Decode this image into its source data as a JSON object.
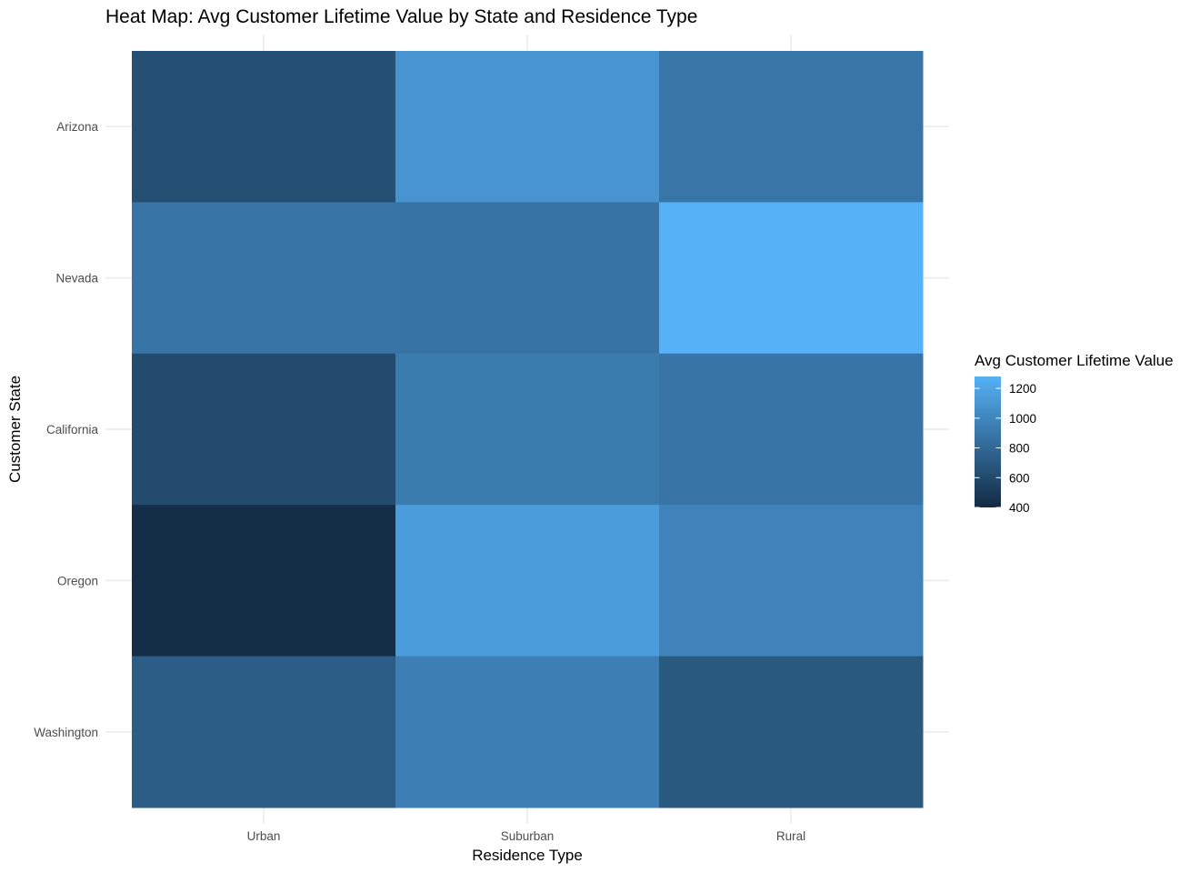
{
  "chart_data": {
    "type": "heatmap",
    "title": "Heat Map: Avg Customer Lifetime Value by State and Residence Type",
    "xlabel": "Residence Type",
    "ylabel": "Customer State",
    "x_categories": [
      "Urban",
      "Suburban",
      "Rural"
    ],
    "y_categories": [
      "Arizona",
      "Nevada",
      "California",
      "Oregon",
      "Washington"
    ],
    "values": [
      [
        640,
        1090,
        890
      ],
      [
        880,
        870,
        1280
      ],
      [
        610,
        930,
        880
      ],
      [
        420,
        1140,
        980
      ],
      [
        730,
        950,
        700
      ]
    ],
    "legend": {
      "title": "Avg Customer Lifetime Value",
      "ticks": [
        400,
        600,
        800,
        1000,
        1200
      ],
      "range": [
        400,
        1280
      ],
      "placement": "right"
    },
    "color_low": "#132B43",
    "color_high": "#56B1F7",
    "grid": true
  }
}
